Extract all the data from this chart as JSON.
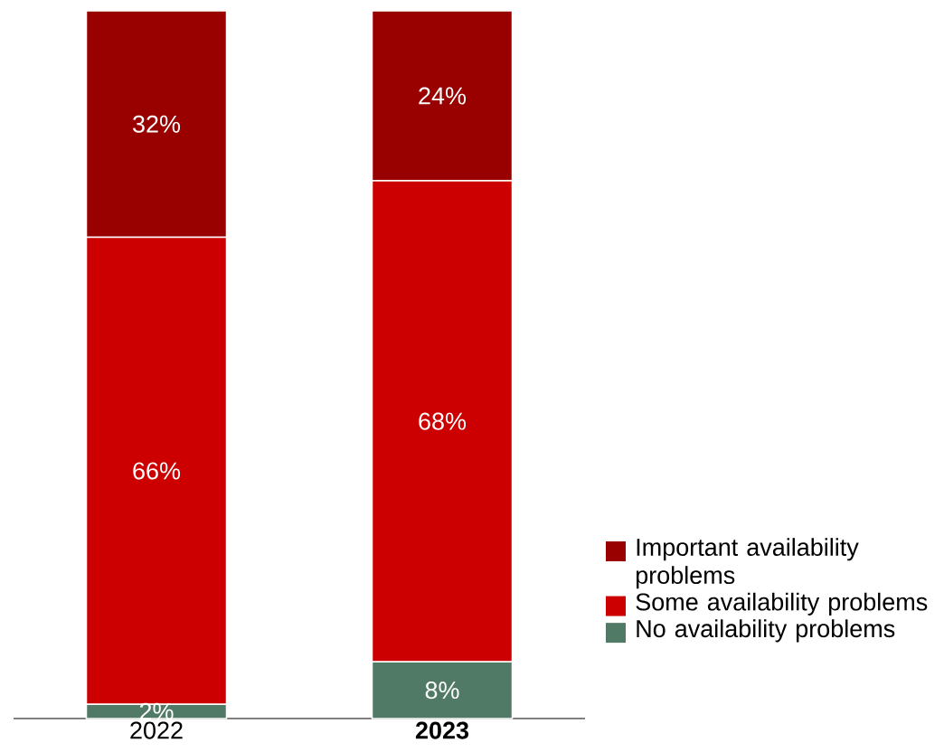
{
  "chart_data": {
    "type": "bar",
    "stacked": true,
    "categories": [
      "2022",
      "**2023**"
    ],
    "series": [
      {
        "name": "No availability problems",
        "color": "#507a66",
        "values": [
          2,
          8
        ],
        "value_labels": [
          "2%",
          "8%"
        ]
      },
      {
        "name": "Some availability problems",
        "color": "#cc0000",
        "values": [
          66,
          68
        ],
        "value_labels": [
          "66%",
          "68%"
        ]
      },
      {
        "name": "Important availability problems",
        "color": "#990000",
        "values": [
          32,
          24
        ],
        "value_labels": [
          "32%",
          "24%"
        ]
      }
    ],
    "legend": "right"
  }
}
